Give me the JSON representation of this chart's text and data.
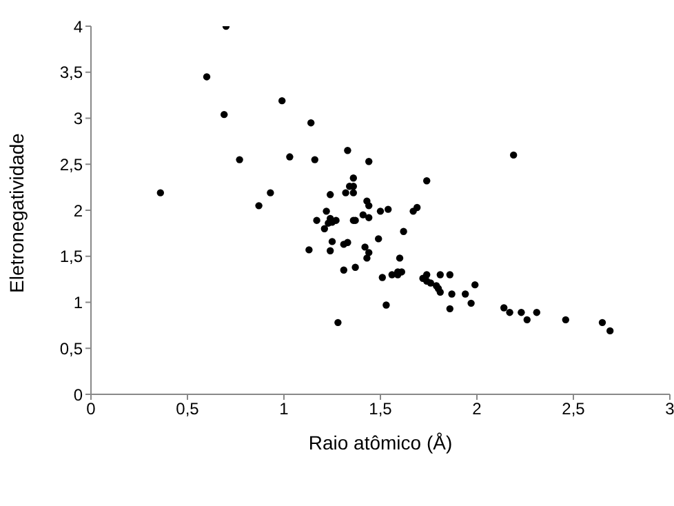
{
  "chart_data": {
    "type": "scatter",
    "xlabel": "Raio atômico (Å)",
    "ylabel": "Eletronegatividade",
    "xlim": [
      0,
      3
    ],
    "ylim": [
      0,
      4
    ],
    "xticks": [
      0,
      {
        "value": 0.5,
        "label": "0,5"
      },
      1,
      {
        "value": 1.5,
        "label": "1,5"
      },
      2,
      {
        "value": 2.5,
        "label": "2,5"
      },
      3
    ],
    "yticks": [
      0,
      {
        "value": 0.5,
        "label": "0,5"
      },
      1,
      {
        "value": 1.5,
        "label": "1,5"
      },
      2,
      {
        "value": 2.5,
        "label": "2,5"
      },
      3,
      {
        "value": 3.5,
        "label": "3,5"
      },
      4
    ],
    "grid": false,
    "legend": false,
    "marker": "circle",
    "series": [
      {
        "color": "#000000",
        "x": [
          0.36,
          0.6,
          0.7,
          0.69,
          0.77,
          0.87,
          0.93,
          0.99,
          1.03,
          1.14,
          1.16,
          1.33,
          1.44,
          1.24,
          1.32,
          1.36,
          1.34,
          1.36,
          1.36,
          1.43,
          1.44,
          1.74,
          1.22,
          1.17,
          1.24,
          1.25,
          1.23,
          1.21,
          1.27,
          1.36,
          1.37,
          1.41,
          1.44,
          1.5,
          1.54,
          1.67,
          1.69,
          1.62,
          1.49,
          1.25,
          1.31,
          1.33,
          1.13,
          1.24,
          1.42,
          1.44,
          1.43,
          1.6,
          1.37,
          1.31,
          1.59,
          1.61,
          1.56,
          1.59,
          1.51,
          1.53,
          1.28,
          1.72,
          1.74,
          1.76,
          1.79,
          1.8,
          1.81,
          1.74,
          1.81,
          1.86,
          1.87,
          1.94,
          1.86,
          1.99,
          1.97,
          2.14,
          2.17,
          2.23,
          2.26,
          2.31,
          2.46,
          2.65,
          2.69,
          2.19
        ],
        "values": [
          2.19,
          3.45,
          4.0,
          3.04,
          2.55,
          2.05,
          2.19,
          3.19,
          2.58,
          2.95,
          2.55,
          2.65,
          2.53,
          2.17,
          2.19,
          2.19,
          2.26,
          2.26,
          2.35,
          2.1,
          2.05,
          2.32,
          1.99,
          1.89,
          1.91,
          1.87,
          1.86,
          1.8,
          1.89,
          1.89,
          1.89,
          1.95,
          1.92,
          1.99,
          2.01,
          1.99,
          2.03,
          1.77,
          1.69,
          1.66,
          1.63,
          1.65,
          1.57,
          1.56,
          1.6,
          1.54,
          1.48,
          1.48,
          1.38,
          1.35,
          1.33,
          1.33,
          1.3,
          1.3,
          1.27,
          0.97,
          0.78,
          1.26,
          1.23,
          1.21,
          1.18,
          1.15,
          1.11,
          1.3,
          1.3,
          1.3,
          1.09,
          1.09,
          0.93,
          1.19,
          0.99,
          0.94,
          0.89,
          0.89,
          0.81,
          0.89,
          0.81,
          0.78,
          0.69,
          2.6
        ]
      }
    ]
  }
}
